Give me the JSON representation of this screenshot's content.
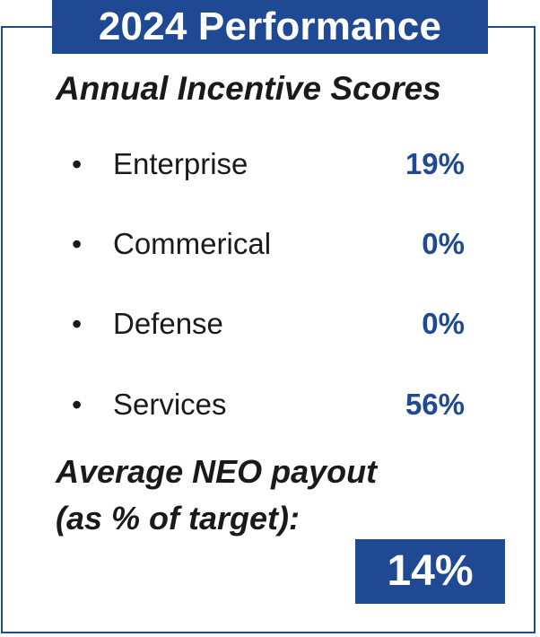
{
  "title": "2024 Performance",
  "subtitle": "Annual Incentive Scores",
  "scores": [
    {
      "label": "Enterprise",
      "value": "19%"
    },
    {
      "label": "Commerical",
      "value": "0%"
    },
    {
      "label": "Defense",
      "value": "0%"
    },
    {
      "label": "Services",
      "value": "56%"
    }
  ],
  "bullet_glyph": "•",
  "payout": {
    "label_line1": "Average NEO payout",
    "label_line2": "(as % of target):",
    "value": "14%"
  },
  "colors": {
    "accent": "#1f4a93",
    "text": "#1a1a1a",
    "background": "#ffffff"
  }
}
